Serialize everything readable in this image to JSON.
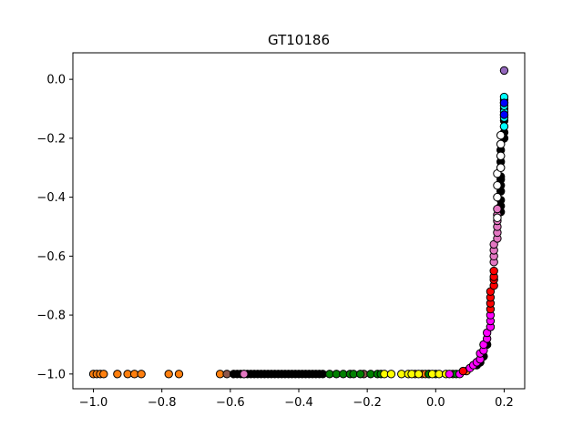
{
  "chart_data": {
    "type": "scatter",
    "title": "GT10186",
    "xlabel": "",
    "ylabel": "",
    "xlim": [
      -1.06,
      0.26
    ],
    "ylim": [
      -1.05,
      0.09
    ],
    "xticks": [
      -1.0,
      -0.8,
      -0.6,
      -0.4,
      -0.2,
      0.0,
      0.2
    ],
    "yticks": [
      0.0,
      -0.2,
      -0.4,
      -0.6,
      -0.8,
      -1.0
    ],
    "xtick_labels": [
      "−1.0",
      "−0.8",
      "−0.6",
      "−0.4",
      "−0.2",
      "0.0",
      "0.2"
    ],
    "ytick_labels": [
      "0.0",
      "−0.2",
      "−0.4",
      "−0.6",
      "−0.8",
      "−1.0"
    ],
    "grid": false,
    "legend": "none",
    "marker_edge_color": "#000000",
    "series": [
      {
        "color": "#ff7f0e",
        "points": [
          [
            -1.0,
            -1.0
          ],
          [
            -0.99,
            -1.0
          ],
          [
            -0.98,
            -1.0
          ],
          [
            -0.97,
            -1.0
          ],
          [
            -0.93,
            -1.0
          ],
          [
            -0.9,
            -1.0
          ],
          [
            -0.88,
            -1.0
          ],
          [
            -0.86,
            -1.0
          ],
          [
            -0.78,
            -1.0
          ],
          [
            -0.75,
            -1.0
          ],
          [
            -0.63,
            -1.0
          ],
          [
            -0.06,
            -1.0
          ],
          [
            -0.04,
            -1.0
          ],
          [
            -0.03,
            -1.0
          ],
          [
            -0.02,
            -1.0
          ],
          [
            0.09,
            -0.99
          ]
        ]
      },
      {
        "color": "#8c564b",
        "points": [
          [
            -0.61,
            -1.0
          ],
          [
            -0.21,
            -1.0
          ],
          [
            0.05,
            -1.0
          ]
        ]
      },
      {
        "color": "#000000",
        "points": [
          [
            -0.59,
            -1.0
          ],
          [
            -0.58,
            -1.0
          ],
          [
            -0.57,
            -1.0
          ],
          [
            -0.56,
            -1.0
          ],
          [
            -0.55,
            -1.0
          ],
          [
            -0.54,
            -1.0
          ],
          [
            -0.53,
            -1.0
          ],
          [
            -0.52,
            -1.0
          ],
          [
            -0.51,
            -1.0
          ],
          [
            -0.5,
            -1.0
          ],
          [
            -0.49,
            -1.0
          ],
          [
            -0.48,
            -1.0
          ],
          [
            -0.47,
            -1.0
          ],
          [
            -0.46,
            -1.0
          ],
          [
            -0.45,
            -1.0
          ],
          [
            -0.44,
            -1.0
          ],
          [
            -0.43,
            -1.0
          ],
          [
            -0.42,
            -1.0
          ],
          [
            -0.41,
            -1.0
          ],
          [
            -0.4,
            -1.0
          ],
          [
            -0.39,
            -1.0
          ],
          [
            -0.38,
            -1.0
          ],
          [
            -0.37,
            -1.0
          ],
          [
            -0.36,
            -1.0
          ],
          [
            -0.35,
            -1.0
          ],
          [
            -0.34,
            -1.0
          ],
          [
            -0.33,
            -1.0
          ],
          [
            0.12,
            -0.97
          ],
          [
            0.13,
            -0.96
          ],
          [
            0.14,
            -0.94
          ],
          [
            0.15,
            -0.9
          ],
          [
            0.19,
            -0.45
          ],
          [
            0.19,
            -0.43
          ],
          [
            0.19,
            -0.41
          ],
          [
            0.19,
            -0.38
          ],
          [
            0.19,
            -0.36
          ],
          [
            0.19,
            -0.34
          ],
          [
            0.19,
            -0.33
          ],
          [
            0.19,
            -0.3
          ],
          [
            0.19,
            -0.28
          ],
          [
            0.19,
            -0.26
          ],
          [
            0.19,
            -0.24
          ],
          [
            0.19,
            -0.22
          ],
          [
            0.2,
            -0.2
          ],
          [
            0.2,
            -0.18
          ],
          [
            0.2,
            -0.16
          ],
          [
            0.2,
            -0.14
          ],
          [
            0.2,
            -0.12
          ],
          [
            0.2,
            -0.1
          ],
          [
            0.2,
            -0.08
          ],
          [
            0.2,
            -0.07
          ]
        ]
      },
      {
        "color": "#e377c2",
        "points": [
          [
            -0.56,
            -1.0
          ],
          [
            0.16,
            -0.84
          ],
          [
            0.17,
            -0.62
          ],
          [
            0.17,
            -0.6
          ],
          [
            0.17,
            -0.58
          ],
          [
            0.17,
            -0.56
          ],
          [
            0.18,
            -0.54
          ],
          [
            0.18,
            -0.52
          ],
          [
            0.18,
            -0.5
          ],
          [
            0.18,
            -0.48
          ],
          [
            0.18,
            -0.46
          ],
          [
            0.18,
            -0.44
          ]
        ]
      },
      {
        "color": "#008000",
        "points": [
          [
            -0.31,
            -1.0
          ],
          [
            -0.29,
            -1.0
          ],
          [
            -0.27,
            -1.0
          ],
          [
            -0.25,
            -1.0
          ],
          [
            -0.24,
            -1.0
          ],
          [
            -0.22,
            -1.0
          ],
          [
            -0.19,
            -1.0
          ],
          [
            -0.17,
            -1.0
          ],
          [
            -0.16,
            -1.0
          ],
          [
            -0.02,
            -1.0
          ],
          [
            0.0,
            -1.0
          ],
          [
            0.06,
            -1.0
          ]
        ]
      },
      {
        "color": "#ffff00",
        "points": [
          [
            -0.15,
            -1.0
          ],
          [
            -0.13,
            -1.0
          ],
          [
            -0.1,
            -1.0
          ],
          [
            -0.08,
            -1.0
          ],
          [
            -0.07,
            -1.0
          ],
          [
            -0.05,
            -1.0
          ],
          [
            -0.01,
            -1.0
          ],
          [
            0.01,
            -1.0
          ],
          [
            0.03,
            -1.0
          ]
        ]
      },
      {
        "color": "#ff00ff",
        "points": [
          [
            0.04,
            -1.0
          ],
          [
            0.07,
            -1.0
          ],
          [
            0.1,
            -0.98
          ],
          [
            0.11,
            -0.97
          ],
          [
            0.12,
            -0.96
          ],
          [
            0.13,
            -0.95
          ],
          [
            0.13,
            -0.93
          ],
          [
            0.14,
            -0.92
          ],
          [
            0.14,
            -0.9
          ],
          [
            0.15,
            -0.88
          ],
          [
            0.15,
            -0.86
          ],
          [
            0.16,
            -0.84
          ],
          [
            0.16,
            -0.82
          ],
          [
            0.16,
            -0.8
          ]
        ]
      },
      {
        "color": "#ff0000",
        "points": [
          [
            0.08,
            -0.99
          ],
          [
            0.16,
            -0.78
          ],
          [
            0.16,
            -0.76
          ],
          [
            0.16,
            -0.74
          ],
          [
            0.16,
            -0.72
          ],
          [
            0.17,
            -0.7
          ],
          [
            0.17,
            -0.68
          ],
          [
            0.17,
            -0.67
          ],
          [
            0.17,
            -0.65
          ]
        ]
      },
      {
        "color": "#ffffff",
        "points": [
          [
            0.18,
            -0.47
          ],
          [
            0.18,
            -0.4
          ],
          [
            0.18,
            -0.36
          ],
          [
            0.18,
            -0.32
          ],
          [
            0.19,
            -0.3
          ],
          [
            0.19,
            -0.26
          ],
          [
            0.19,
            -0.22
          ],
          [
            0.19,
            -0.19
          ]
        ]
      },
      {
        "color": "#00ffff",
        "points": [
          [
            0.2,
            -0.16
          ],
          [
            0.2,
            -0.13
          ],
          [
            0.2,
            -0.11
          ],
          [
            0.2,
            -0.09
          ],
          [
            0.2,
            -0.06
          ]
        ]
      },
      {
        "color": "#0000ff",
        "points": [
          [
            0.2,
            -0.12
          ],
          [
            0.2,
            -0.08
          ]
        ]
      },
      {
        "color": "#9467bd",
        "points": [
          [
            0.2,
            0.03
          ]
        ]
      }
    ]
  }
}
